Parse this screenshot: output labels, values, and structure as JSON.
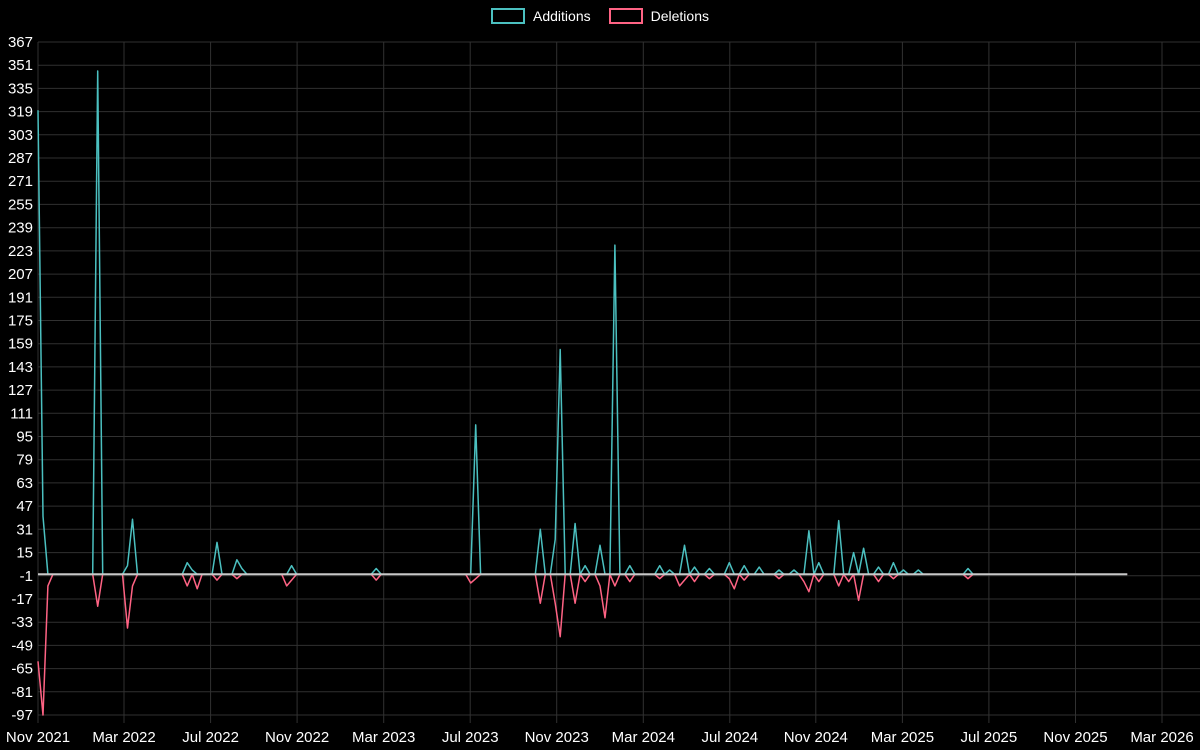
{
  "colors": {
    "background": "#000000",
    "grid": "#313131",
    "text": "#ffffff",
    "additions": "#4bc0c0",
    "deletions": "#ff6384",
    "zero_line": "#c8c8c8"
  },
  "legend": [
    {
      "label": "Additions",
      "color": "#4bc0c0"
    },
    {
      "label": "Deletions",
      "color": "#ff6384"
    }
  ],
  "chart_data": {
    "type": "line",
    "title": "",
    "xlabel": "",
    "ylabel": "",
    "grid": true,
    "legend_position": "top-center",
    "x_axis": {
      "tick_labels": [
        "Nov 2021",
        "Mar 2022",
        "Jul 2022",
        "Nov 2022",
        "Mar 2023",
        "Jul 2023",
        "Nov 2023",
        "Mar 2024",
        "Jul 2024",
        "Nov 2024",
        "Mar 2025",
        "Jul 2025",
        "Nov 2025",
        "Mar 2026"
      ],
      "tick_weeks": [
        0,
        17.3,
        34.7,
        52.1,
        69.5,
        86.9,
        104.3,
        121.7,
        139.1,
        156.4,
        173.8,
        191.2,
        208.6,
        226
      ],
      "data_end_week": 219
    },
    "y_axis": {
      "min": -97,
      "max": 367,
      "step": 16
    },
    "series": [
      {
        "name": "Additions",
        "color": "#4bc0c0",
        "baseline": 0,
        "points": [
          [
            0,
            320
          ],
          [
            1,
            40
          ],
          [
            12,
            347
          ],
          [
            18,
            6
          ],
          [
            19,
            38
          ],
          [
            30,
            8
          ],
          [
            31,
            3
          ],
          [
            36,
            22
          ],
          [
            40,
            10
          ],
          [
            41,
            4
          ],
          [
            51,
            6
          ],
          [
            68,
            4
          ],
          [
            88,
            103
          ],
          [
            101,
            31
          ],
          [
            104,
            24
          ],
          [
            105,
            155
          ],
          [
            108,
            35
          ],
          [
            110,
            6
          ],
          [
            113,
            20
          ],
          [
            116,
            227
          ],
          [
            119,
            6
          ],
          [
            125,
            6
          ],
          [
            127,
            3
          ],
          [
            130,
            20
          ],
          [
            132,
            5
          ],
          [
            135,
            4
          ],
          [
            139,
            8
          ],
          [
            142,
            6
          ],
          [
            145,
            5
          ],
          [
            149,
            3
          ],
          [
            152,
            3
          ],
          [
            155,
            30
          ],
          [
            157,
            8
          ],
          [
            161,
            37
          ],
          [
            164,
            15
          ],
          [
            166,
            18
          ],
          [
            169,
            5
          ],
          [
            172,
            8
          ],
          [
            174,
            3
          ],
          [
            177,
            3
          ],
          [
            187,
            4
          ]
        ]
      },
      {
        "name": "Deletions",
        "color": "#ff6384",
        "baseline": 0,
        "points": [
          [
            0,
            -60
          ],
          [
            1,
            -97
          ],
          [
            2,
            -8
          ],
          [
            12,
            -22
          ],
          [
            18,
            -37
          ],
          [
            19,
            -8
          ],
          [
            30,
            -8
          ],
          [
            32,
            -10
          ],
          [
            36,
            -4
          ],
          [
            40,
            -3
          ],
          [
            50,
            -8
          ],
          [
            51,
            -4
          ],
          [
            68,
            -4
          ],
          [
            87,
            -6
          ],
          [
            88,
            -3
          ],
          [
            101,
            -20
          ],
          [
            104,
            -20
          ],
          [
            105,
            -43
          ],
          [
            108,
            -20
          ],
          [
            110,
            -5
          ],
          [
            113,
            -8
          ],
          [
            114,
            -30
          ],
          [
            116,
            -8
          ],
          [
            119,
            -5
          ],
          [
            125,
            -3
          ],
          [
            129,
            -8
          ],
          [
            130,
            -4
          ],
          [
            132,
            -5
          ],
          [
            135,
            -3
          ],
          [
            139,
            -3
          ],
          [
            140,
            -10
          ],
          [
            142,
            -4
          ],
          [
            149,
            -3
          ],
          [
            154,
            -5
          ],
          [
            155,
            -12
          ],
          [
            157,
            -5
          ],
          [
            161,
            -8
          ],
          [
            163,
            -5
          ],
          [
            165,
            -18
          ],
          [
            169,
            -5
          ],
          [
            172,
            -3
          ],
          [
            187,
            -3
          ]
        ]
      }
    ],
    "zero_line": {
      "value": 0,
      "end_week": 219,
      "color": "#c8c8c8"
    }
  }
}
